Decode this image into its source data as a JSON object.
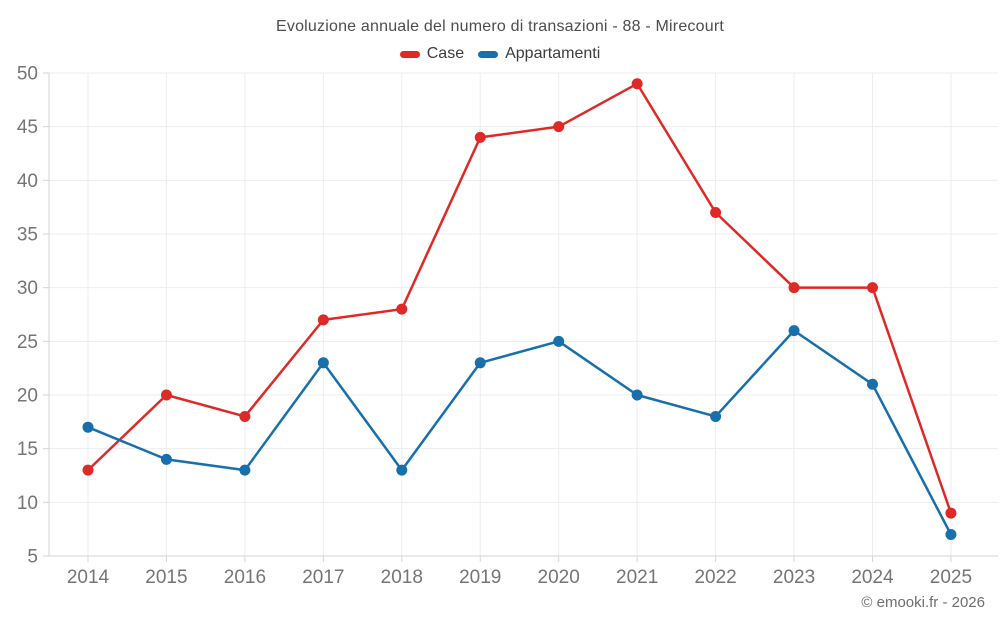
{
  "attribution": {
    "text": "© emooki.fr - 2026"
  },
  "chart_data": {
    "type": "line",
    "title": "Evoluzione annuale del numero di transazioni - 88 - Mirecourt",
    "categories": [
      "2014",
      "2015",
      "2016",
      "2017",
      "2018",
      "2019",
      "2020",
      "2021",
      "2022",
      "2023",
      "2024",
      "2025"
    ],
    "series": [
      {
        "name": "Case",
        "color": "#de2926",
        "values": [
          13,
          20,
          18,
          27,
          28,
          44,
          45,
          49,
          37,
          30,
          30,
          9
        ]
      },
      {
        "name": "Appartamenti",
        "color": "#176fab",
        "values": [
          17,
          14,
          13,
          23,
          13,
          23,
          25,
          20,
          18,
          26,
          21,
          7
        ]
      }
    ],
    "xlabel": "",
    "ylabel": "",
    "ylim": [
      5,
      50
    ],
    "ytick_step": 5,
    "grid": true,
    "legend_position": "top",
    "colors": {
      "grid": "#ededed",
      "axis": "#d6d6d6",
      "axis_label": "#757575",
      "title_text": "#4d4d4d",
      "legend_text": "#3d3d3d",
      "attribution_text": "#6e6e6e",
      "background": "#ffffff"
    }
  }
}
